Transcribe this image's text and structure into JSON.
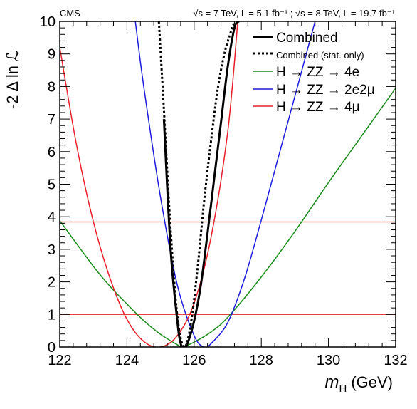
{
  "header": {
    "experiment": "CMS",
    "energy_label": "√s = 7 TeV, L = 5.1 fb⁻¹ ; √s = 8 TeV, L = 19.7 fb⁻¹"
  },
  "chart_data": {
    "type": "line",
    "xlabel_var": "m",
    "xlabel_sub": "H",
    "xlabel_unit": "(GeV)",
    "ylabel": "-2 Δ ln ℒ",
    "xlim": [
      122,
      132
    ],
    "ylim": [
      0,
      10
    ],
    "x_ticks": [
      122,
      124,
      126,
      128,
      130,
      132
    ],
    "y_ticks": [
      0,
      1,
      2,
      3,
      4,
      5,
      6,
      7,
      8,
      9,
      10
    ],
    "reference_lines": [
      1,
      3.84
    ],
    "reference_line_color": "#e8202a",
    "series": [
      {
        "name": "Combined",
        "color": "#000000",
        "style": "solid",
        "width": 3,
        "x": [
          125.1,
          125.3,
          125.5,
          125.6,
          125.7,
          125.8,
          126.0,
          126.2,
          126.4,
          126.6,
          126.8,
          127.0,
          127.2,
          127.33
        ],
        "y": [
          7.0,
          3.0,
          0.8,
          0.1,
          0.0,
          0.1,
          0.8,
          1.9,
          3.5,
          5.2,
          6.9,
          8.6,
          9.8,
          10.0
        ]
      },
      {
        "name": "Combined (stat. only)",
        "color": "#000000",
        "style": "dotted",
        "width": 3,
        "x": [
          124.95,
          125.1,
          125.3,
          125.5,
          125.7,
          125.9,
          126.1,
          126.3,
          126.5,
          126.7,
          126.9,
          127.1,
          127.22
        ],
        "y": [
          10.0,
          7.3,
          3.6,
          0.95,
          0.0,
          0.7,
          2.4,
          4.5,
          6.3,
          7.9,
          9.0,
          9.7,
          10.0
        ]
      },
      {
        "name": "H → ZZ → 4e",
        "color": "#1a8c1a",
        "style": "solid",
        "width": 1.5,
        "x": [
          122,
          123,
          123.5,
          124,
          124.5,
          125,
          125.5,
          125.65,
          126,
          126.5,
          127,
          128,
          129,
          130,
          131,
          132
        ],
        "y": [
          3.88,
          2.48,
          1.86,
          1.32,
          0.81,
          0.39,
          0.07,
          0.0,
          0.15,
          0.46,
          0.91,
          2.15,
          3.55,
          5.05,
          6.5,
          7.95
        ]
      },
      {
        "name": "H → ZZ → 2e2μ",
        "color": "#1c1cdc",
        "style": "solid",
        "width": 1.5,
        "x": [
          124.25,
          124.5,
          125,
          125.5,
          126,
          126.3,
          126.5,
          127,
          127.5,
          128,
          128.5,
          129,
          129.6
        ],
        "y": [
          10.0,
          8.0,
          4.6,
          1.9,
          0.35,
          0.0,
          0.1,
          0.75,
          2.1,
          3.9,
          5.8,
          7.7,
          10.0
        ]
      },
      {
        "name": "H → ZZ → 4μ",
        "color": "#e8202a",
        "style": "solid",
        "width": 1.5,
        "x": [
          122,
          122.5,
          123,
          123.5,
          124,
          124.5,
          125,
          125.5,
          126,
          126.5,
          127,
          127.3
        ],
        "y": [
          9.2,
          6.2,
          3.85,
          2.1,
          0.85,
          0.17,
          0.0,
          0.35,
          1.35,
          3.35,
          6.6,
          10.0
        ]
      }
    ],
    "legend_placement": "top-right"
  }
}
